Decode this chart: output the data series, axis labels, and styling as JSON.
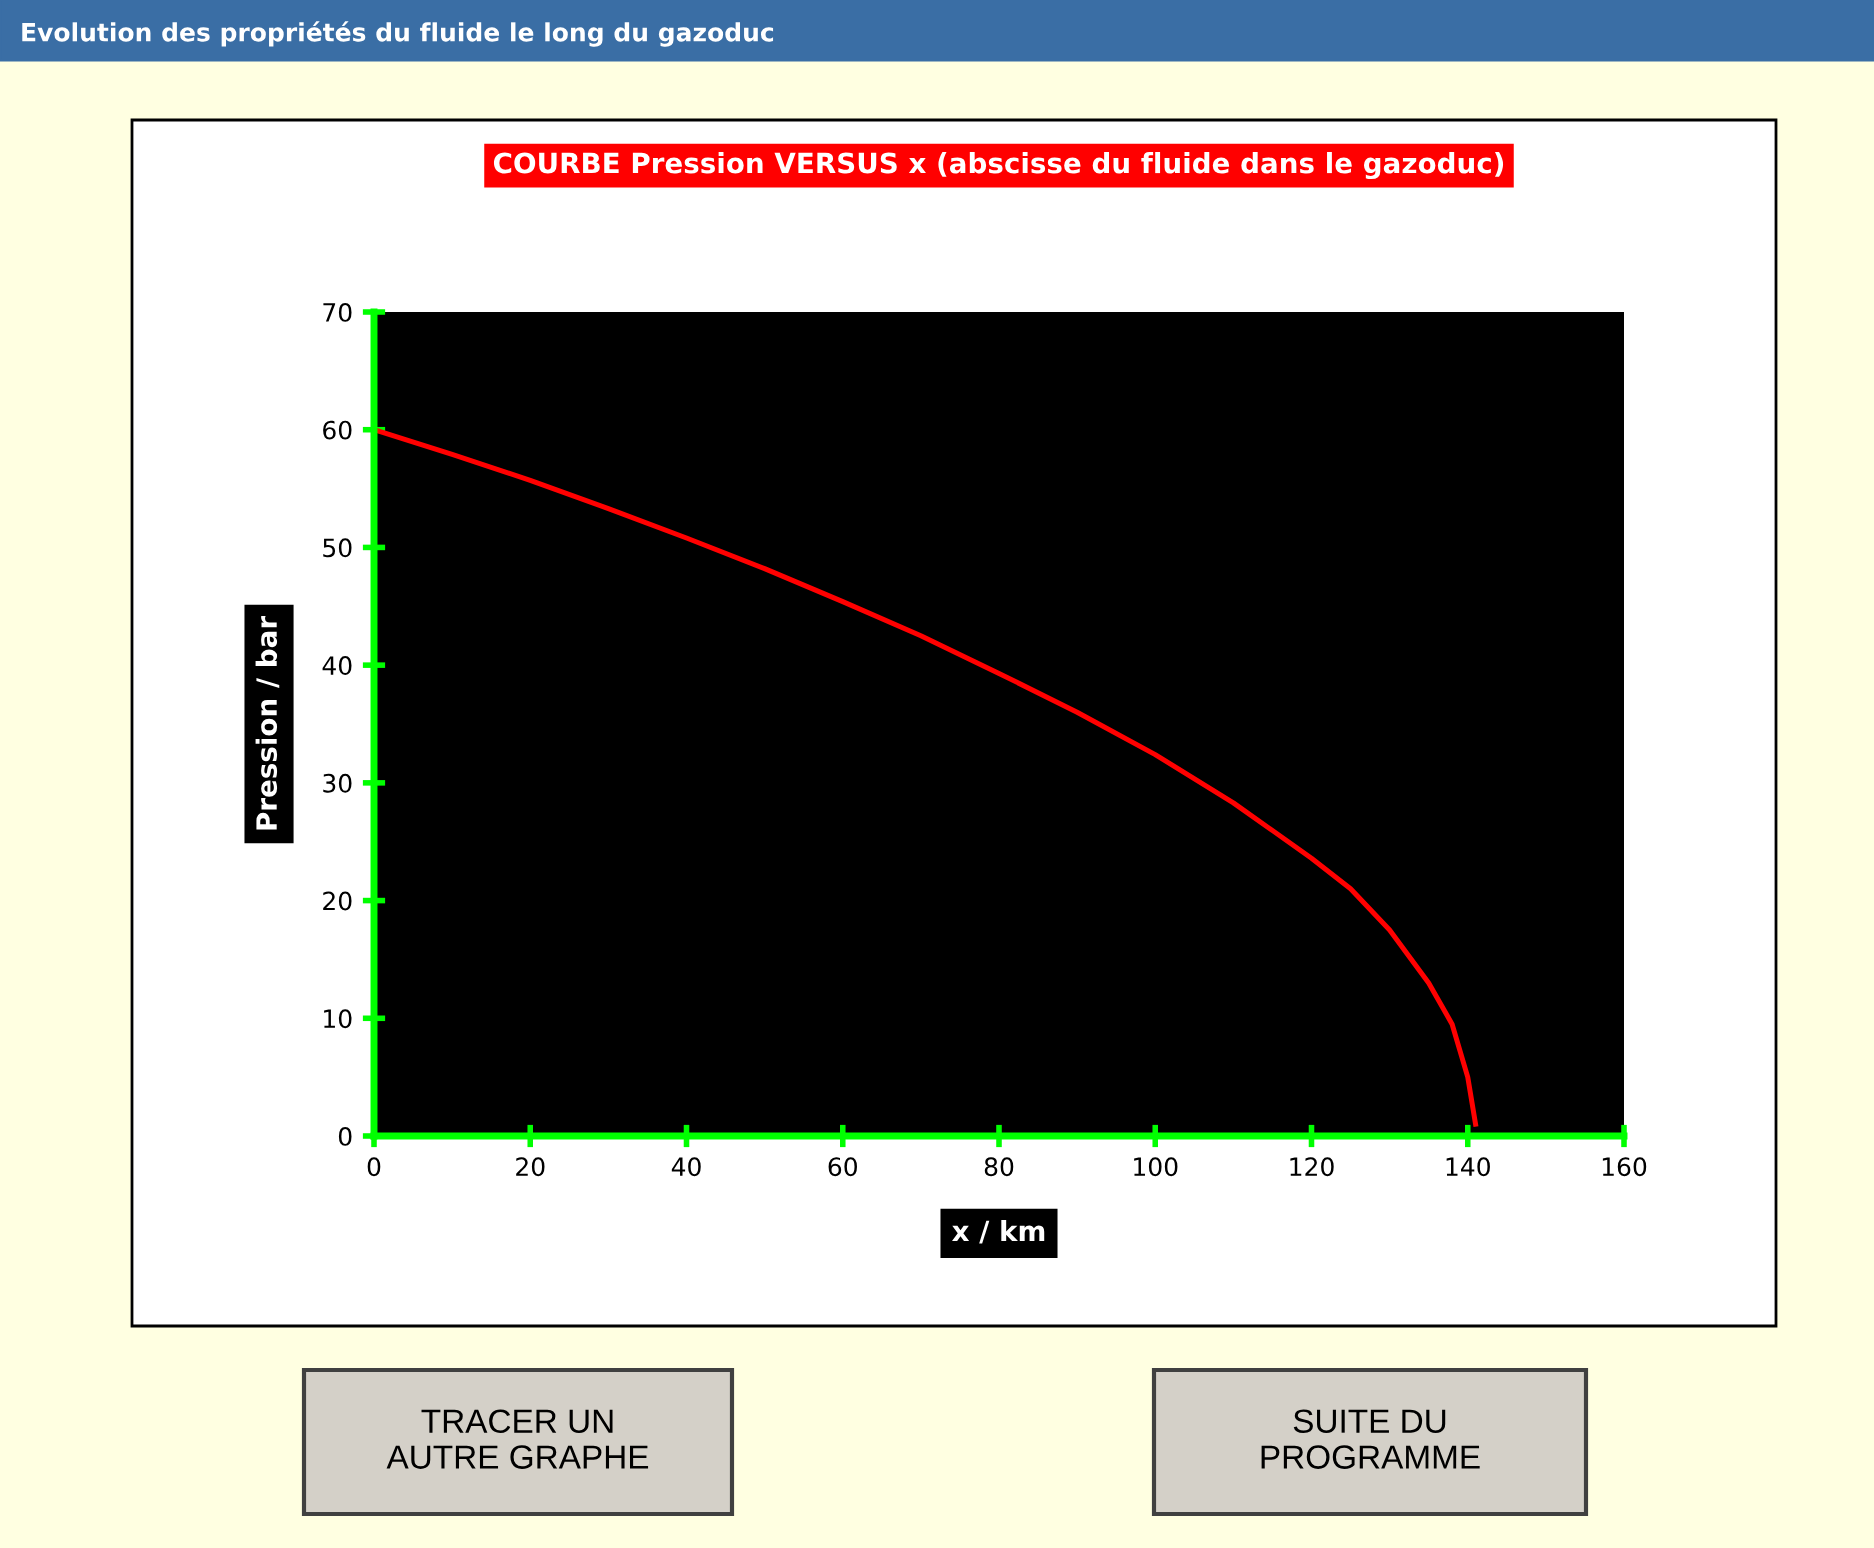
{
  "chart_data": {
    "type": "line",
    "title": "COURBE Pression VERSUS x (abscisse du fluide dans le gazoduc)",
    "xlabel": "x / km",
    "ylabel": "Pression / bar",
    "annotations": [
      "Evolution des propriétés du fluide le long du gazoduc",
      "TRACER UN\nAUTRE GRAPHE",
      "SUITE DU\nPROGRAMME"
    ],
    "x": [
      0,
      10,
      20,
      30,
      40,
      50,
      60,
      70,
      80,
      90,
      100,
      110,
      120,
      125,
      130,
      135,
      138,
      140,
      141
    ],
    "series": [
      {
        "color": "#ff0000",
        "values": [
          60,
          57.9,
          55.7,
          53.3,
          50.8,
          48.2,
          45.4,
          42.5,
          39.3,
          36.0,
          32.4,
          28.3,
          23.6,
          21,
          17.5,
          13,
          9.5,
          5,
          1
        ]
      }
    ],
    "xlim": [
      0,
      160
    ],
    "xticks": [
      0,
      20,
      40,
      60,
      80,
      100,
      120,
      140,
      160
    ],
    "ylim": [
      0,
      70
    ],
    "yticks": [
      0,
      10,
      20,
      30,
      40,
      50,
      60,
      70
    ],
    "grid": false,
    "marker": "none",
    "line_style": "solid"
  }
}
